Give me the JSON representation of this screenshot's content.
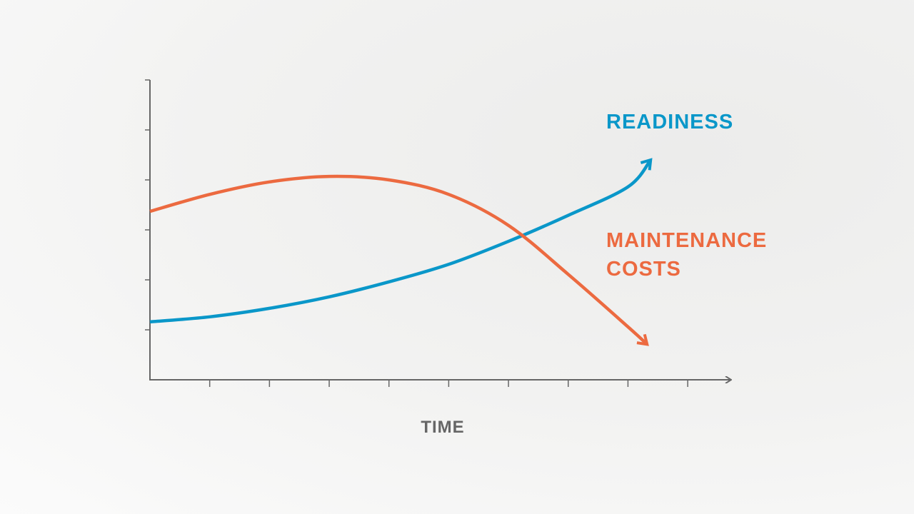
{
  "chart_data": {
    "type": "line",
    "x_label": "TIME",
    "xlim": [
      0,
      9.68
    ],
    "xticks": [
      1,
      2,
      3,
      4,
      5,
      6,
      7,
      8,
      9
    ],
    "ylim": [
      0,
      6
    ],
    "yticks": [
      1,
      2,
      3,
      4,
      5,
      6
    ],
    "series": [
      {
        "name": "READINESS",
        "color": "#0a97c9",
        "x": [
          0,
          1,
          2,
          3,
          4,
          5,
          6,
          7,
          8,
          8.38
        ],
        "values": [
          1.16,
          1.26,
          1.43,
          1.66,
          1.96,
          2.31,
          2.77,
          3.29,
          3.86,
          4.4
        ]
      },
      {
        "name": "MAINTENANCE COSTS",
        "color": "#ec6a40",
        "x": [
          0,
          1,
          2,
          3,
          4,
          5,
          6,
          7,
          8,
          8.32
        ],
        "values": [
          3.37,
          3.71,
          3.96,
          4.07,
          4.0,
          3.71,
          3.09,
          2.11,
          1.06,
          0.71
        ]
      }
    ]
  }
}
